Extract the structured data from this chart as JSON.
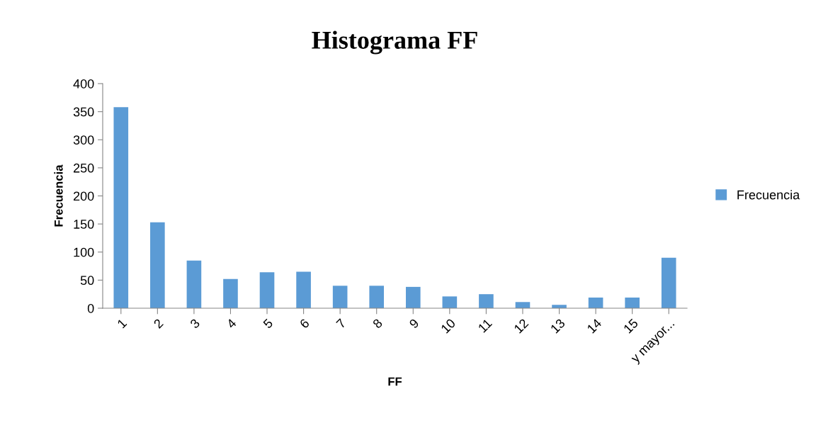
{
  "chart_data": {
    "type": "bar",
    "title": "Histograma FF",
    "xlabel": "FF",
    "ylabel": "Frecuencia",
    "categories": [
      "1",
      "2",
      "3",
      "4",
      "5",
      "6",
      "7",
      "8",
      "9",
      "10",
      "11",
      "12",
      "13",
      "14",
      "15",
      "y mayor..."
    ],
    "series": [
      {
        "name": "Frecuencia",
        "color": "#5b9bd5",
        "values": [
          358,
          153,
          85,
          52,
          64,
          65,
          40,
          40,
          38,
          21,
          25,
          11,
          6,
          19,
          19,
          90
        ]
      }
    ],
    "ylim": [
      0,
      400
    ],
    "yticks": [
      0,
      50,
      100,
      150,
      200,
      250,
      300,
      350,
      400
    ],
    "grid": false,
    "legend": "right"
  }
}
